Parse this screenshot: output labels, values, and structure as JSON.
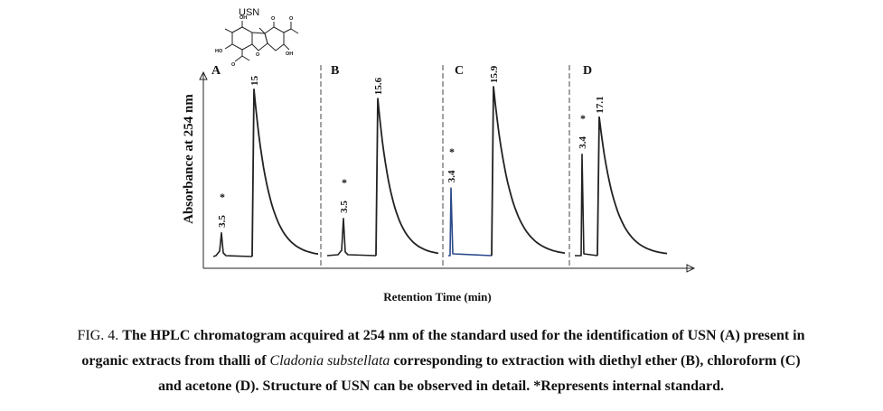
{
  "structure": {
    "label": "USN",
    "atom_labels": [
      "OH",
      "HO",
      "OH",
      "O",
      "O",
      "O",
      "O"
    ]
  },
  "chart_data": {
    "type": "line",
    "xlabel": "Retention Time (min)",
    "ylabel": "Absorbance at 254 nm",
    "grid": false,
    "legend": "none",
    "panels": [
      {
        "id": "A",
        "peaks": [
          {
            "label": "3.5",
            "mark": "*",
            "rt": 3.5,
            "height": 0.14,
            "kind": "small"
          },
          {
            "label": "15",
            "mark": "",
            "rt": 15,
            "height": 0.99,
            "kind": "main"
          }
        ]
      },
      {
        "id": "B",
        "peaks": [
          {
            "label": "3.5",
            "mark": "*",
            "rt": 3.5,
            "height": 0.22,
            "kind": "small"
          },
          {
            "label": "15.6",
            "mark": "",
            "rt": 15.6,
            "height": 0.93,
            "kind": "main"
          }
        ]
      },
      {
        "id": "C",
        "peaks": [
          {
            "label": "3.4",
            "mark": "*",
            "rt": 3.4,
            "height": 0.4,
            "kind": "narrow"
          },
          {
            "label": "15.9",
            "mark": "",
            "rt": 15.9,
            "height": 1.0,
            "kind": "main"
          }
        ]
      },
      {
        "id": "D",
        "peaks": [
          {
            "label": "3.4",
            "mark": "*",
            "rt": 3.4,
            "height": 0.6,
            "kind": "narrow"
          },
          {
            "label": "17.1",
            "mark": "",
            "rt": 17.1,
            "height": 0.82,
            "kind": "main"
          }
        ]
      }
    ]
  },
  "caption": {
    "fig": "FIG. 4.",
    "line1_bold": "The HPLC chromatogram acquired at 254 nm of the standard used for the identification of USN (A) present in",
    "line2_bold_a": "organic extracts from thalli of",
    "line2_italic": "Cladonia substellata",
    "line2_bold_b": "corresponding to extraction with diethyl ether (B), chloroform (C)",
    "line3_bold": "and acetone (D). Structure of USN can be observed in detail. *Represents internal standard."
  }
}
